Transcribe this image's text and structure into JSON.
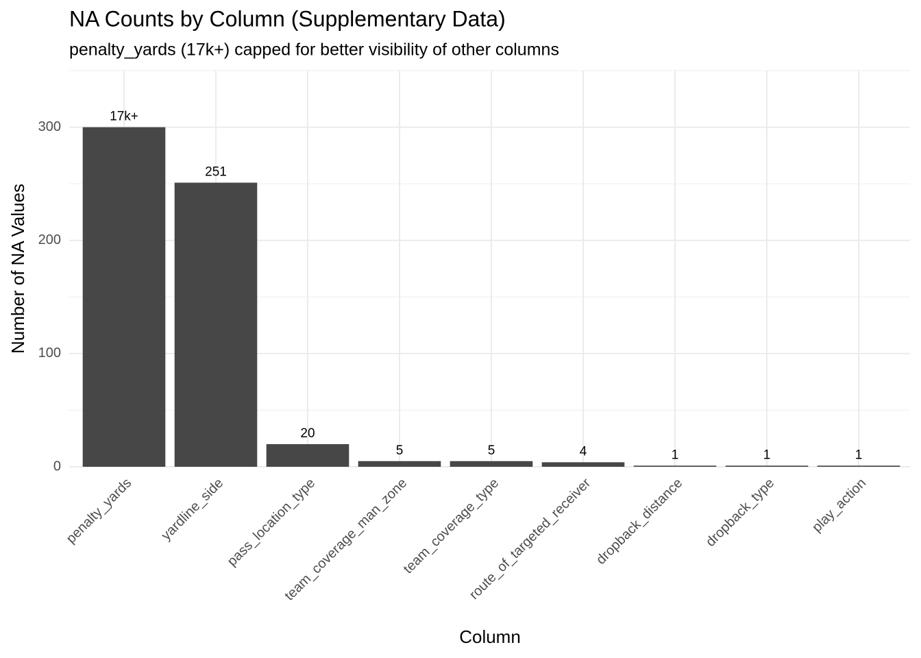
{
  "chart_data": {
    "type": "bar",
    "title": "NA Counts by Column (Supplementary Data)",
    "subtitle": "penalty_yards (17k+) capped for better visibility of other columns",
    "x_label": "Column",
    "y_label": "Number of NA Values",
    "categories": [
      "penalty_yards",
      "yardline_side",
      "pass_location_type",
      "team_coverage_man_zone",
      "team_coverage_type",
      "route_of_targeted_receiver",
      "dropback_distance",
      "dropback_type",
      "play_action"
    ],
    "values": [
      300,
      251,
      20,
      5,
      5,
      4,
      1,
      1,
      1
    ],
    "annotations": [
      {
        "category": "penalty_yards",
        "text": "17k+"
      }
    ],
    "color": "#474747",
    "ylim": [
      0,
      350
    ],
    "yticks": [
      0,
      100,
      200,
      300
    ],
    "grid": true
  }
}
